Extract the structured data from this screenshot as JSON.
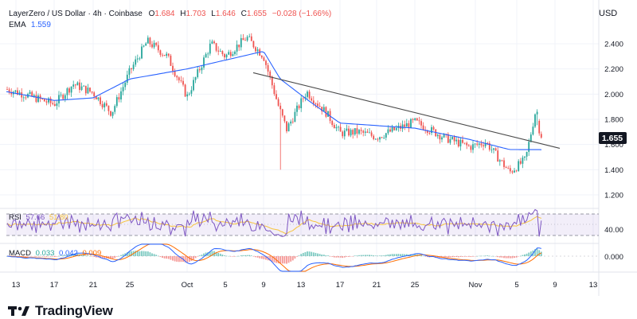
{
  "header": {
    "symbol": "LayerZero / US Dollar · 4h · Coinbase",
    "open_label": "O",
    "open": "1.684",
    "high_label": "H",
    "high": "1.703",
    "low_label": "L",
    "low": "1.646",
    "close_label": "C",
    "close": "1.655",
    "change": "−0.028 (−1.66%)",
    "ema_label": "EMA",
    "ema_value": "1.559",
    "currency": "USD"
  },
  "rsi": {
    "label": "RSI",
    "value": "57.66",
    "ma_value": "51.80",
    "axis_label": "40.00"
  },
  "macd": {
    "label": "MACD",
    "hist": "0.033",
    "macd": "0.042",
    "signal": "0.009",
    "axis_label": "0.000"
  },
  "footer": {
    "brand": "TradingView"
  },
  "colors": {
    "up": "#26a69a",
    "down": "#ef5350",
    "ema": "#2962ff",
    "rsi": "#7e57c2",
    "rsi_ma": "#f7c43c",
    "macd": "#2962ff",
    "signal": "#ff6d00",
    "trendline": "#4a4a4a",
    "price_label_bg": "#131722"
  },
  "chart_data": {
    "type": "candlestick",
    "title": "LayerZero / US Dollar · 4h · Coinbase",
    "y_ticks": [
      "2.400",
      "2.200",
      "2.000",
      "1.800",
      "1.600",
      "1.400",
      "1.200"
    ],
    "ylim": [
      1.1,
      2.55
    ],
    "x_ticks": [
      "13",
      "17",
      "21",
      "25",
      "Oct",
      "5",
      "9",
      "13",
      "17",
      "21",
      "25",
      "Nov",
      "5",
      "9",
      "13"
    ],
    "last_price": "1.655",
    "price_path": [
      {
        "label": "Sep 13",
        "close": 2.04
      },
      {
        "label": "Sep 15",
        "close": 2.0
      },
      {
        "label": "Sep 17",
        "close": 1.92
      },
      {
        "label": "Sep 19",
        "close": 2.08
      },
      {
        "label": "Sep 21",
        "close": 2.01
      },
      {
        "label": "Sep 23",
        "close": 1.85
      },
      {
        "label": "Sep 25",
        "close": 2.18
      },
      {
        "label": "Sep 27",
        "close": 2.42
      },
      {
        "label": "Sep 29",
        "close": 2.3
      },
      {
        "label": "Oct 1",
        "close": 1.98
      },
      {
        "label": "Oct 3",
        "close": 2.4
      },
      {
        "label": "Oct 5",
        "close": 2.3
      },
      {
        "label": "Oct 7",
        "close": 2.45
      },
      {
        "label": "Oct 9",
        "close": 2.3
      },
      {
        "label": "Oct 10",
        "close": 1.9
      },
      {
        "label": "Oct 11",
        "close": 1.72
      },
      {
        "label": "Oct 13",
        "close": 2.02
      },
      {
        "label": "Oct 15",
        "close": 1.85
      },
      {
        "label": "Oct 17",
        "close": 1.69
      },
      {
        "label": "Oct 19",
        "close": 1.7
      },
      {
        "label": "Oct 21",
        "close": 1.66
      },
      {
        "label": "Oct 25",
        "close": 1.78
      },
      {
        "label": "Oct 28",
        "close": 1.65
      },
      {
        "label": "Oct 31",
        "close": 1.58
      },
      {
        "label": "Nov 2",
        "close": 1.62
      },
      {
        "label": "Nov 4",
        "close": 1.38
      },
      {
        "label": "Nov 6",
        "close": 1.48
      },
      {
        "label": "Nov 7",
        "close": 1.85
      },
      {
        "label": "Nov 7",
        "close": 1.655
      }
    ],
    "ema_path": [
      {
        "label": "Sep 13",
        "value": 2.02
      },
      {
        "label": "Sep 19",
        "value": 1.95
      },
      {
        "label": "Sep 23",
        "value": 1.97
      },
      {
        "label": "Sep 27",
        "value": 2.12
      },
      {
        "label": "Oct 1",
        "value": 2.2
      },
      {
        "label": "Oct 5",
        "value": 2.27
      },
      {
        "label": "Oct 9",
        "value": 2.34
      },
      {
        "label": "Oct 12",
        "value": 2.12
      },
      {
        "label": "Oct 15",
        "value": 1.96
      },
      {
        "label": "Oct 19",
        "value": 1.77
      },
      {
        "label": "Oct 25",
        "value": 1.73
      },
      {
        "label": "Oct 31",
        "value": 1.64
      },
      {
        "label": "Nov 4",
        "value": 1.56
      },
      {
        "label": "Nov 7",
        "value": 1.559
      }
    ],
    "trendline": [
      {
        "label": "Oct 9",
        "value": 2.17
      },
      {
        "label": "Nov 9",
        "value": 1.57
      }
    ]
  }
}
